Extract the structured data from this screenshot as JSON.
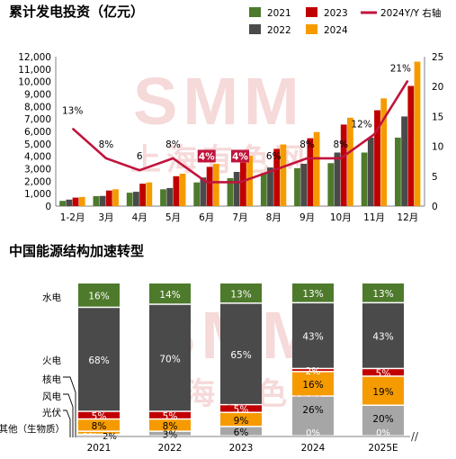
{
  "watermark": {
    "brand": "SMM",
    "subtitle": "上海有色网"
  },
  "colors": {
    "y2021": "#4e7a2c",
    "y2022": "#4a4a4a",
    "y2023": "#c00000",
    "y2024": "#f59b00",
    "yoy": "#c0143c",
    "hydro": "#4e7a2c",
    "thermal": "#4a4a4a",
    "nuclear": "#c00000",
    "wind": "#f59b00",
    "solar": "#f59b00",
    "other": "#a6a6a6",
    "axis": "#808080"
  },
  "chart_data": [
    {
      "type": "bar",
      "title": "累计发电投资（亿元）",
      "categories": [
        "1-2月",
        "3月",
        "4月",
        "5月",
        "6月",
        "7月",
        "8月",
        "9月",
        "10月",
        "11月",
        "12月"
      ],
      "series": [
        {
          "name": "2021",
          "values": [
            420,
            800,
            1080,
            1350,
            1900,
            2250,
            2650,
            3050,
            3450,
            4300,
            5500
          ]
        },
        {
          "name": "2022",
          "values": [
            520,
            820,
            1150,
            1450,
            2300,
            2750,
            3100,
            3400,
            4300,
            5500,
            7200
          ]
        },
        {
          "name": "2023",
          "values": [
            680,
            1250,
            1800,
            2400,
            3150,
            3500,
            4600,
            5450,
            6550,
            7700,
            9650
          ]
        },
        {
          "name": "2024",
          "values": [
            730,
            1350,
            1900,
            2600,
            3400,
            4050,
            4950,
            5950,
            7100,
            8650,
            11600
          ]
        }
      ],
      "line": {
        "name": "2024Y/Y 右轴",
        "values": [
          13,
          8,
          6,
          8,
          4,
          4,
          6,
          8,
          8,
          12,
          21
        ],
        "labels": [
          "13%",
          "8%",
          "6",
          "8%",
          "4%",
          "4%",
          "6%",
          "8%",
          "8%",
          "12%",
          "21%"
        ]
      },
      "ylim": [
        0,
        12000
      ],
      "yticks": [
        "0",
        "1,000",
        "2,000",
        "3,000",
        "4,000",
        "5,000",
        "6,000",
        "7,000",
        "8,000",
        "9,000",
        "10,000",
        "11,000",
        "12,000"
      ],
      "y2lim": [
        0,
        25
      ],
      "y2ticks": [
        "0",
        "5",
        "10",
        "15",
        "20",
        "25"
      ],
      "legend_position": "top-right"
    },
    {
      "type": "bar",
      "stacked": true,
      "title": "中国能源结构加速转型",
      "categories": [
        "2021",
        "2022",
        "2023",
        "2024",
        "2025E"
      ],
      "row_labels": [
        "水电",
        "火电",
        "核电",
        "风电",
        "光伏",
        "其他（生物质）"
      ],
      "series": [
        {
          "name": "其他（生物质）",
          "values": [
            1,
            3,
            6,
            26,
            20
          ],
          "labels": [
            "1%",
            "3%",
            "6%",
            "26%",
            "20%"
          ]
        },
        {
          "name": "光伏",
          "values": [
            2,
            0,
            0,
            0,
            0
          ],
          "labels": [
            "2%",
            "",
            "",
            "",
            ""
          ]
        },
        {
          "name": "风电",
          "values": [
            8,
            8,
            9,
            16,
            19
          ],
          "labels": [
            "8%",
            "8%",
            "9%",
            "16%",
            "19%"
          ]
        },
        {
          "name": "核电",
          "values": [
            5,
            5,
            5,
            2,
            5
          ],
          "labels": [
            "5%",
            "5%",
            "5%",
            "2%",
            "5%"
          ]
        },
        {
          "name": "火电",
          "values": [
            68,
            70,
            65,
            43,
            43
          ],
          "labels": [
            "68%",
            "70%",
            "65%",
            "43%",
            "43%"
          ]
        },
        {
          "name": "水电",
          "values": [
            16,
            14,
            13,
            13,
            13
          ],
          "labels": [
            "16%",
            "14%",
            "13%",
            "13%",
            "13%"
          ]
        }
      ],
      "extra_labels": {
        "zero_2024": "0%",
        "zero_2025E": "0%"
      },
      "axis_break": "//"
    }
  ]
}
